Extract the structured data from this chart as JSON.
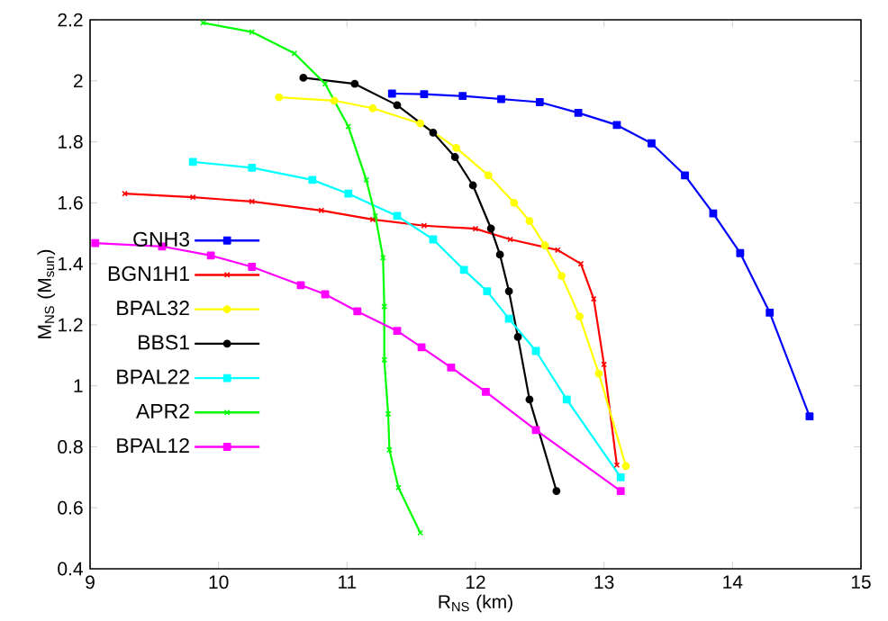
{
  "chart_data": {
    "type": "line",
    "xlabel": "R$_{NS}$ (km)",
    "ylabel": "M$_{NS}$ (M$_{sun}$)",
    "xlim": [
      9,
      15
    ],
    "ylim": [
      0.4,
      2.2
    ],
    "xticks": [
      9,
      10,
      11,
      12,
      13,
      14,
      15
    ],
    "yticks": [
      0.4,
      0.6,
      0.8,
      1,
      1.2,
      1.4,
      1.6,
      1.8,
      2,
      2.2
    ],
    "grid": false,
    "legend": "left",
    "series": [
      {
        "name": "GNH3",
        "color": "#0000ff",
        "marker": "square",
        "x": [
          11.35,
          11.6,
          11.9,
          12.2,
          12.5,
          12.8,
          13.1,
          13.37,
          13.63,
          13.85,
          14.06,
          14.29,
          14.6
        ],
        "values": [
          1.958,
          1.956,
          1.95,
          1.94,
          1.93,
          1.895,
          1.855,
          1.795,
          1.69,
          1.565,
          1.435,
          1.24,
          0.9
        ]
      },
      {
        "name": "BGN1H1",
        "color": "#ff0000",
        "marker": "cross",
        "x": [
          9.27,
          9.8,
          10.26,
          10.8,
          11.2,
          11.6,
          12.0,
          12.27,
          12.64,
          12.82,
          12.92,
          13.0,
          13.1
        ],
        "values": [
          1.63,
          1.618,
          1.604,
          1.575,
          1.545,
          1.525,
          1.515,
          1.48,
          1.445,
          1.4,
          1.285,
          1.07,
          0.74
        ]
      },
      {
        "name": "BPAL32",
        "color": "#ffff00",
        "marker": "circle",
        "x": [
          10.47,
          10.9,
          11.2,
          11.57,
          11.85,
          12.1,
          12.3,
          12.42,
          12.54,
          12.67,
          12.81,
          12.96,
          13.17
        ],
        "values": [
          1.946,
          1.935,
          1.91,
          1.86,
          1.78,
          1.69,
          1.6,
          1.54,
          1.46,
          1.36,
          1.227,
          1.04,
          0.737
        ]
      },
      {
        "name": "BBS1",
        "color": "#000000",
        "marker": "circle",
        "x": [
          10.66,
          11.06,
          11.39,
          11.67,
          11.84,
          11.98,
          12.12,
          12.19,
          12.26,
          12.33,
          12.42,
          12.63
        ],
        "values": [
          2.01,
          1.99,
          1.92,
          1.83,
          1.75,
          1.657,
          1.516,
          1.43,
          1.31,
          1.16,
          0.955,
          0.655
        ]
      },
      {
        "name": "BPAL22",
        "color": "#00ffff",
        "marker": "square",
        "x": [
          9.8,
          10.26,
          10.73,
          11.01,
          11.39,
          11.67,
          11.91,
          12.09,
          12.26,
          12.47,
          12.71,
          13.13
        ],
        "values": [
          1.734,
          1.715,
          1.675,
          1.63,
          1.557,
          1.48,
          1.38,
          1.31,
          1.22,
          1.114,
          0.955,
          0.7
        ]
      },
      {
        "name": "APR2",
        "color": "#00ff00",
        "marker": "cross",
        "x": [
          9.88,
          10.26,
          10.59,
          10.83,
          11.01,
          11.15,
          11.22,
          11.28,
          11.29,
          11.29,
          11.32,
          11.33,
          11.4,
          11.57
        ],
        "values": [
          2.19,
          2.16,
          2.09,
          1.99,
          1.85,
          1.675,
          1.557,
          1.42,
          1.26,
          1.085,
          0.908,
          0.79,
          0.666,
          0.518
        ]
      },
      {
        "name": "BPAL12",
        "color": "#ff00ff",
        "marker": "square",
        "x": [
          9.04,
          9.56,
          9.94,
          10.26,
          10.64,
          10.83,
          11.08,
          11.39,
          11.58,
          11.81,
          12.08,
          12.47,
          13.13
        ],
        "values": [
          1.468,
          1.457,
          1.427,
          1.39,
          1.33,
          1.3,
          1.244,
          1.18,
          1.126,
          1.06,
          0.98,
          0.855,
          0.655
        ]
      }
    ]
  }
}
